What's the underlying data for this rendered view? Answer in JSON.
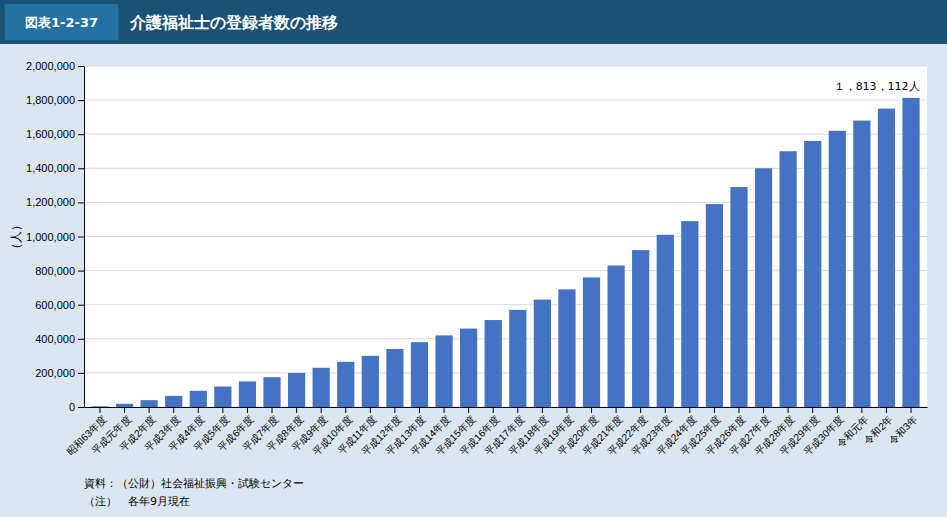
{
  "chart_data": {
    "type": "bar",
    "figure_label": "図表1-2-37",
    "title": "介護福祉士の登録者数の推移",
    "ylabel": "（人）",
    "annotation": "１，813，112人",
    "source": [
      "資料：（公財）社会福祉振興・試験センター",
      "（注）　各年9月現在"
    ],
    "categories": [
      "昭和63年度",
      "平成元年度",
      "平成2年度",
      "平成3年度",
      "平成4年度",
      "平成5年度",
      "平成6年度",
      "平成7年度",
      "平成8年度",
      "平成9年度",
      "平成10年度",
      "平成11年度",
      "平成12年度",
      "平成13年度",
      "平成14年度",
      "平成15年度",
      "平成16年度",
      "平成17年度",
      "平成18年度",
      "平成19年度",
      "平成20年度",
      "平成21年度",
      "平成22年度",
      "平成23年度",
      "平成24年度",
      "平成25年度",
      "平成26年度",
      "平成27年度",
      "平成28年度",
      "平成29年度",
      "平成30年度",
      "令和元年",
      "令和2年",
      "令和3年"
    ],
    "values": [
      4000,
      19000,
      40000,
      65000,
      95000,
      120000,
      150000,
      175000,
      200000,
      230000,
      265000,
      300000,
      340000,
      380000,
      420000,
      460000,
      510000,
      570000,
      630000,
      690000,
      760000,
      830000,
      920000,
      1010000,
      1090000,
      1190000,
      1290000,
      1400000,
      1500000,
      1560000,
      1620000,
      1680000,
      1750000,
      1813112
    ],
    "color": "#4472c4",
    "ylim": [
      0,
      2000000
    ],
    "yticks": [
      0,
      {
        "value": 200000,
        "label": "200,000"
      },
      {
        "value": 400000,
        "label": "400,000"
      },
      {
        "value": 600000,
        "label": "600,000"
      },
      {
        "value": 800000,
        "label": "800,000"
      },
      {
        "value": 1000000,
        "label": "1,000,000"
      },
      {
        "value": 1200000,
        "label": "1,200,000"
      },
      {
        "value": 1400000,
        "label": "1,400,000"
      },
      {
        "value": 1600000,
        "label": "1,600,000"
      },
      {
        "value": 1800000,
        "label": "1,800,000"
      },
      {
        "value": 2000000,
        "label": "2,000,000"
      }
    ],
    "grid": true
  }
}
